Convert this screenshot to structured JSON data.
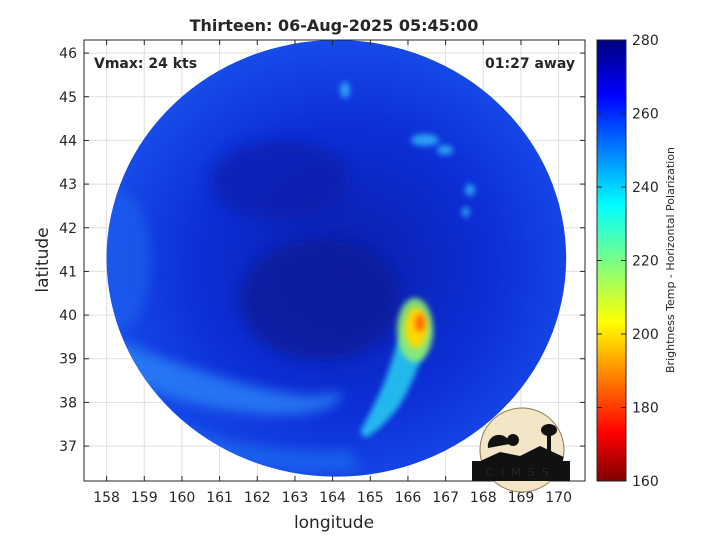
{
  "chart_data": {
    "type": "heatmap",
    "title": "Thirteen: 06-Aug-2025 05:45:00",
    "xlabel": "longitude",
    "ylabel": "latitude",
    "xlim": [
      157.4,
      170.7
    ],
    "ylim": [
      36.2,
      46.3
    ],
    "xticks": [
      158,
      159,
      160,
      161,
      162,
      163,
      164,
      165,
      166,
      167,
      168,
      169,
      170
    ],
    "yticks": [
      37,
      38,
      39,
      40,
      41,
      42,
      43,
      44,
      45,
      46
    ],
    "grid": true,
    "annotations": {
      "left": "Vmax: 24 kts",
      "right": "01:27 away"
    },
    "colorbar": {
      "label": "Brightness Temp - Horizontal Polarization",
      "min": 160,
      "max": 280,
      "ticks": [
        160,
        180,
        200,
        220,
        240,
        260,
        280
      ]
    },
    "disk": {
      "center": [
        164.1,
        41.3
      ],
      "radius_lon": 6.1,
      "radius_lat": 5.0
    },
    "features": [
      {
        "label": "warm-core",
        "lon": 166.35,
        "lat": 39.85,
        "value": 195
      },
      {
        "label": "warm-band",
        "lon": 166.0,
        "lat": 38.7,
        "value": 235
      },
      {
        "label": "southwest-arc",
        "lon": 160.3,
        "lat": 38.6,
        "value": 252
      },
      {
        "label": "northeast-cells",
        "lon": 166.7,
        "lat": 43.7,
        "value": 250
      }
    ]
  },
  "logo": {
    "text": "CIMSS"
  }
}
